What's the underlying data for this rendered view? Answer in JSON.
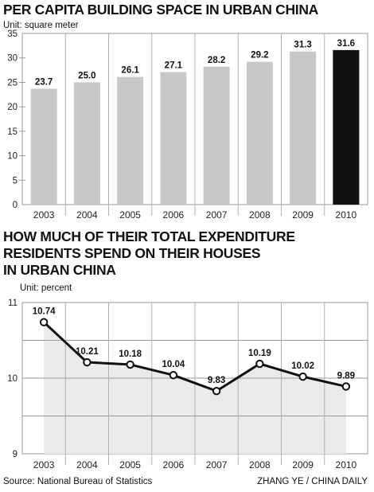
{
  "chart_data": [
    {
      "type": "bar",
      "title": "PER CAPITA BUILDING SPACE IN URBAN CHINA",
      "unit": "Unit: square meter",
      "categories": [
        "2003",
        "2004",
        "2005",
        "2006",
        "2007",
        "2008",
        "2009",
        "2010"
      ],
      "values": [
        23.7,
        25.0,
        26.1,
        27.1,
        28.2,
        29.2,
        31.3,
        31.6
      ],
      "value_labels": [
        "23.7",
        "25.0",
        "26.1",
        "27.1",
        "28.2",
        "29.2",
        "31.3",
        "31.6"
      ],
      "ylim": [
        0,
        35
      ],
      "yticks": [
        "0",
        "5",
        "10",
        "15",
        "20",
        "25",
        "30",
        "35"
      ],
      "highlight_index": 7,
      "colors": {
        "bar": "#c8c8c8",
        "highlight": "#111111",
        "background": "#ffffff"
      }
    },
    {
      "type": "line",
      "title_lines": [
        "HOW MUCH OF THEIR TOTAL EXPENDITURE",
        "RESIDENTS SPEND ON THEIR HOUSES",
        "IN URBAN CHINA"
      ],
      "unit": "Unit: percent",
      "categories": [
        "2003",
        "2004",
        "2005",
        "2006",
        "2007",
        "2008",
        "2009",
        "2010"
      ],
      "values": [
        10.74,
        10.21,
        10.18,
        10.04,
        9.83,
        10.19,
        10.02,
        9.89
      ],
      "value_labels": [
        "10.74",
        "10.21",
        "10.18",
        "10.04",
        "9.83",
        "10.19",
        "10.02",
        "9.89"
      ],
      "ylim": [
        9,
        11
      ],
      "yticks": [
        "9",
        "10",
        "11"
      ],
      "colors": {
        "line": "#111111",
        "area": "#eaeaea",
        "marker": "#ffffff"
      }
    }
  ],
  "footer": {
    "source": "Source: National Bureau of Statistics",
    "credit": "ZHANG YE / CHINA DAILY"
  }
}
